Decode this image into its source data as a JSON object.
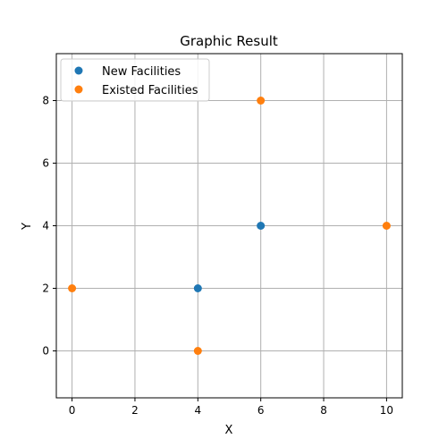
{
  "chart_data": {
    "type": "scatter",
    "title": "Graphic Result",
    "xlabel": "X",
    "ylabel": "Y",
    "xlim": [
      -0.5,
      10.5
    ],
    "ylim": [
      -1.5,
      9.5
    ],
    "xticks": [
      0,
      2,
      4,
      6,
      8,
      10
    ],
    "yticks": [
      0,
      2,
      4,
      6,
      8
    ],
    "grid": true,
    "legend_position": "top-left",
    "series": [
      {
        "name": "New Facilities",
        "color": "#1f77b4",
        "points": [
          {
            "x": 4,
            "y": 2
          },
          {
            "x": 6,
            "y": 4
          }
        ]
      },
      {
        "name": "Existed Facilities",
        "color": "#ff7f0e",
        "points": [
          {
            "x": 0,
            "y": 2
          },
          {
            "x": 4,
            "y": 0
          },
          {
            "x": 6,
            "y": 8
          },
          {
            "x": 10,
            "y": 4
          }
        ]
      }
    ]
  }
}
